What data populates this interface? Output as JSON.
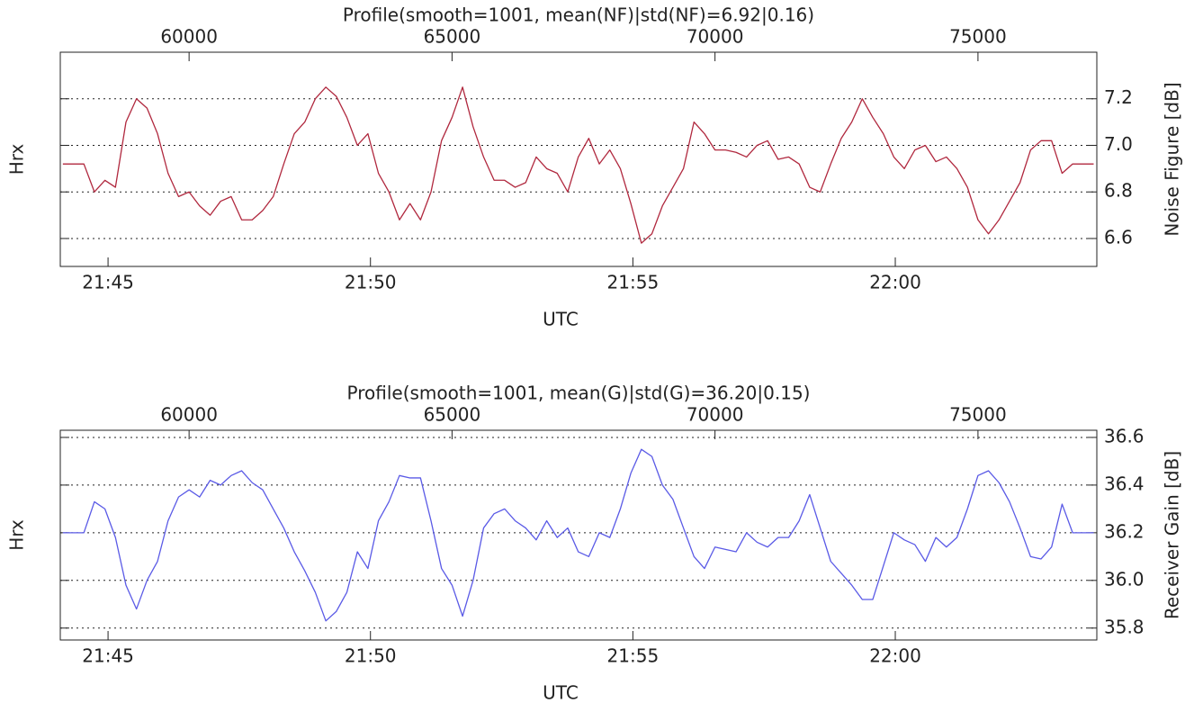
{
  "chart_data": [
    {
      "type": "line",
      "title": "Profile(smooth=1001, mean(NF)|std(NF)=6.92|0.16)",
      "xlabel": "UTC",
      "ylabel": "Hrx",
      "y2label": "Noise Figure [dB]",
      "x": [
        57600,
        57800,
        58000,
        58200,
        58400,
        58600,
        58800,
        59000,
        59200,
        59400,
        59600,
        59800,
        60000,
        60200,
        60400,
        60600,
        60800,
        61000,
        61200,
        61400,
        61600,
        61800,
        62000,
        62200,
        62400,
        62600,
        62800,
        63000,
        63200,
        63400,
        63600,
        63800,
        64000,
        64200,
        64400,
        64600,
        64800,
        65000,
        65200,
        65400,
        65600,
        65800,
        66000,
        66200,
        66400,
        66600,
        66800,
        67000,
        67200,
        67400,
        67600,
        67800,
        68000,
        68200,
        68400,
        68600,
        68800,
        69000,
        69200,
        69400,
        69600,
        69800,
        70000,
        70200,
        70400,
        70600,
        70800,
        71000,
        71200,
        71400,
        71600,
        71800,
        72000,
        72200,
        72400,
        72600,
        72800,
        73000,
        73200,
        73400,
        73600,
        73800,
        74000,
        74200,
        74400,
        74600,
        74800,
        75000,
        75200,
        75400,
        75600,
        75800,
        76000,
        76200,
        76400,
        76600,
        76800,
        77000,
        77200
      ],
      "series": [
        {
          "color": "#b0283e",
          "values": [
            6.92,
            6.92,
            6.92,
            6.8,
            6.85,
            6.82,
            7.1,
            7.2,
            7.16,
            7.05,
            6.88,
            6.78,
            6.8,
            6.74,
            6.7,
            6.76,
            6.78,
            6.68,
            6.68,
            6.72,
            6.78,
            6.92,
            7.05,
            7.1,
            7.2,
            7.25,
            7.21,
            7.12,
            7.0,
            7.05,
            6.88,
            6.8,
            6.68,
            6.75,
            6.68,
            6.8,
            7.02,
            7.12,
            7.25,
            7.08,
            6.95,
            6.85,
            6.85,
            6.82,
            6.84,
            6.95,
            6.9,
            6.88,
            6.8,
            6.95,
            7.03,
            6.92,
            6.98,
            6.9,
            6.75,
            6.58,
            6.62,
            6.74,
            6.82,
            6.9,
            7.1,
            7.05,
            6.98,
            6.98,
            6.97,
            6.95,
            7.0,
            7.02,
            6.94,
            6.95,
            6.92,
            6.82,
            6.8,
            6.92,
            7.03,
            7.1,
            7.2,
            7.12,
            7.05,
            6.95,
            6.9,
            6.98,
            7.0,
            6.93,
            6.95,
            6.9,
            6.82,
            6.68,
            6.62,
            6.68,
            6.76,
            6.84,
            6.98,
            7.02,
            7.02,
            6.88,
            6.92,
            6.92,
            6.92
          ]
        }
      ],
      "xlim": [
        57551,
        77260
      ],
      "xticks": [
        60000,
        65000,
        70000,
        75000
      ],
      "x2lim": [
        44.09,
        63.84
      ],
      "x2ticks": [
        {
          "value": 45,
          "label": "21:45"
        },
        {
          "value": 50,
          "label": "21:50"
        },
        {
          "value": 55,
          "label": "21:55"
        },
        {
          "value": 60,
          "label": "22:00"
        }
      ],
      "ylim": [
        6.48,
        7.4
      ],
      "yticks": [
        6.6,
        6.8,
        {
          "value": 7,
          "label": "7.0"
        },
        7.2
      ],
      "grid": true
    },
    {
      "type": "line",
      "title": "Profile(smooth=1001, mean(G)|std(G)=36.20|0.15)",
      "xlabel": "UTC",
      "ylabel": "Hrx",
      "y2label": "Receiver Gain [dB]",
      "x": [
        57600,
        57800,
        58000,
        58200,
        58400,
        58600,
        58800,
        59000,
        59200,
        59400,
        59600,
        59800,
        60000,
        60200,
        60400,
        60600,
        60800,
        61000,
        61200,
        61400,
        61600,
        61800,
        62000,
        62200,
        62400,
        62600,
        62800,
        63000,
        63200,
        63400,
        63600,
        63800,
        64000,
        64200,
        64400,
        64600,
        64800,
        65000,
        65200,
        65400,
        65600,
        65800,
        66000,
        66200,
        66400,
        66600,
        66800,
        67000,
        67200,
        67400,
        67600,
        67800,
        68000,
        68200,
        68400,
        68600,
        68800,
        69000,
        69200,
        69400,
        69600,
        69800,
        70000,
        70200,
        70400,
        70600,
        70800,
        71000,
        71200,
        71400,
        71600,
        71800,
        72000,
        72200,
        72400,
        72600,
        72800,
        73000,
        73200,
        73400,
        73600,
        73800,
        74000,
        74200,
        74400,
        74600,
        74800,
        75000,
        75200,
        75400,
        75600,
        75800,
        76000,
        76200,
        76400,
        76600,
        76800,
        77000,
        77200
      ],
      "series": [
        {
          "color": "#5a5ae6",
          "values": [
            36.2,
            36.2,
            36.2,
            36.33,
            36.3,
            36.18,
            35.98,
            35.88,
            36.0,
            36.08,
            36.25,
            36.35,
            36.38,
            36.35,
            36.42,
            36.4,
            36.44,
            36.46,
            36.41,
            36.38,
            36.3,
            36.22,
            36.12,
            36.04,
            35.95,
            35.83,
            35.87,
            35.95,
            36.12,
            36.05,
            36.25,
            36.33,
            36.44,
            36.43,
            36.43,
            36.25,
            36.05,
            35.98,
            35.85,
            36.0,
            36.22,
            36.28,
            36.3,
            36.25,
            36.22,
            36.17,
            36.25,
            36.18,
            36.22,
            36.12,
            36.1,
            36.2,
            36.18,
            36.3,
            36.45,
            36.55,
            36.52,
            36.4,
            36.34,
            36.22,
            36.1,
            36.05,
            36.14,
            36.13,
            36.12,
            36.2,
            36.16,
            36.14,
            36.18,
            36.18,
            36.25,
            36.36,
            36.22,
            36.08,
            36.03,
            35.98,
            35.92,
            35.92,
            36.06,
            36.2,
            36.17,
            36.15,
            36.08,
            36.18,
            36.14,
            36.18,
            36.3,
            36.44,
            36.46,
            36.41,
            36.33,
            36.22,
            36.1,
            36.09,
            36.14,
            36.32,
            36.2,
            36.2,
            36.2
          ]
        }
      ],
      "xlim": [
        57551,
        77260
      ],
      "xticks": [
        60000,
        65000,
        70000,
        75000
      ],
      "x2lim": [
        44.09,
        63.84
      ],
      "x2ticks": [
        {
          "value": 45,
          "label": "21:45"
        },
        {
          "value": 50,
          "label": "21:50"
        },
        {
          "value": 55,
          "label": "21:55"
        },
        {
          "value": 60,
          "label": "22:00"
        }
      ],
      "ylim": [
        35.75,
        36.63
      ],
      "yticks": [
        35.8,
        {
          "value": 36,
          "label": "36.0"
        },
        36.2,
        36.4,
        36.6
      ],
      "grid": true
    }
  ]
}
